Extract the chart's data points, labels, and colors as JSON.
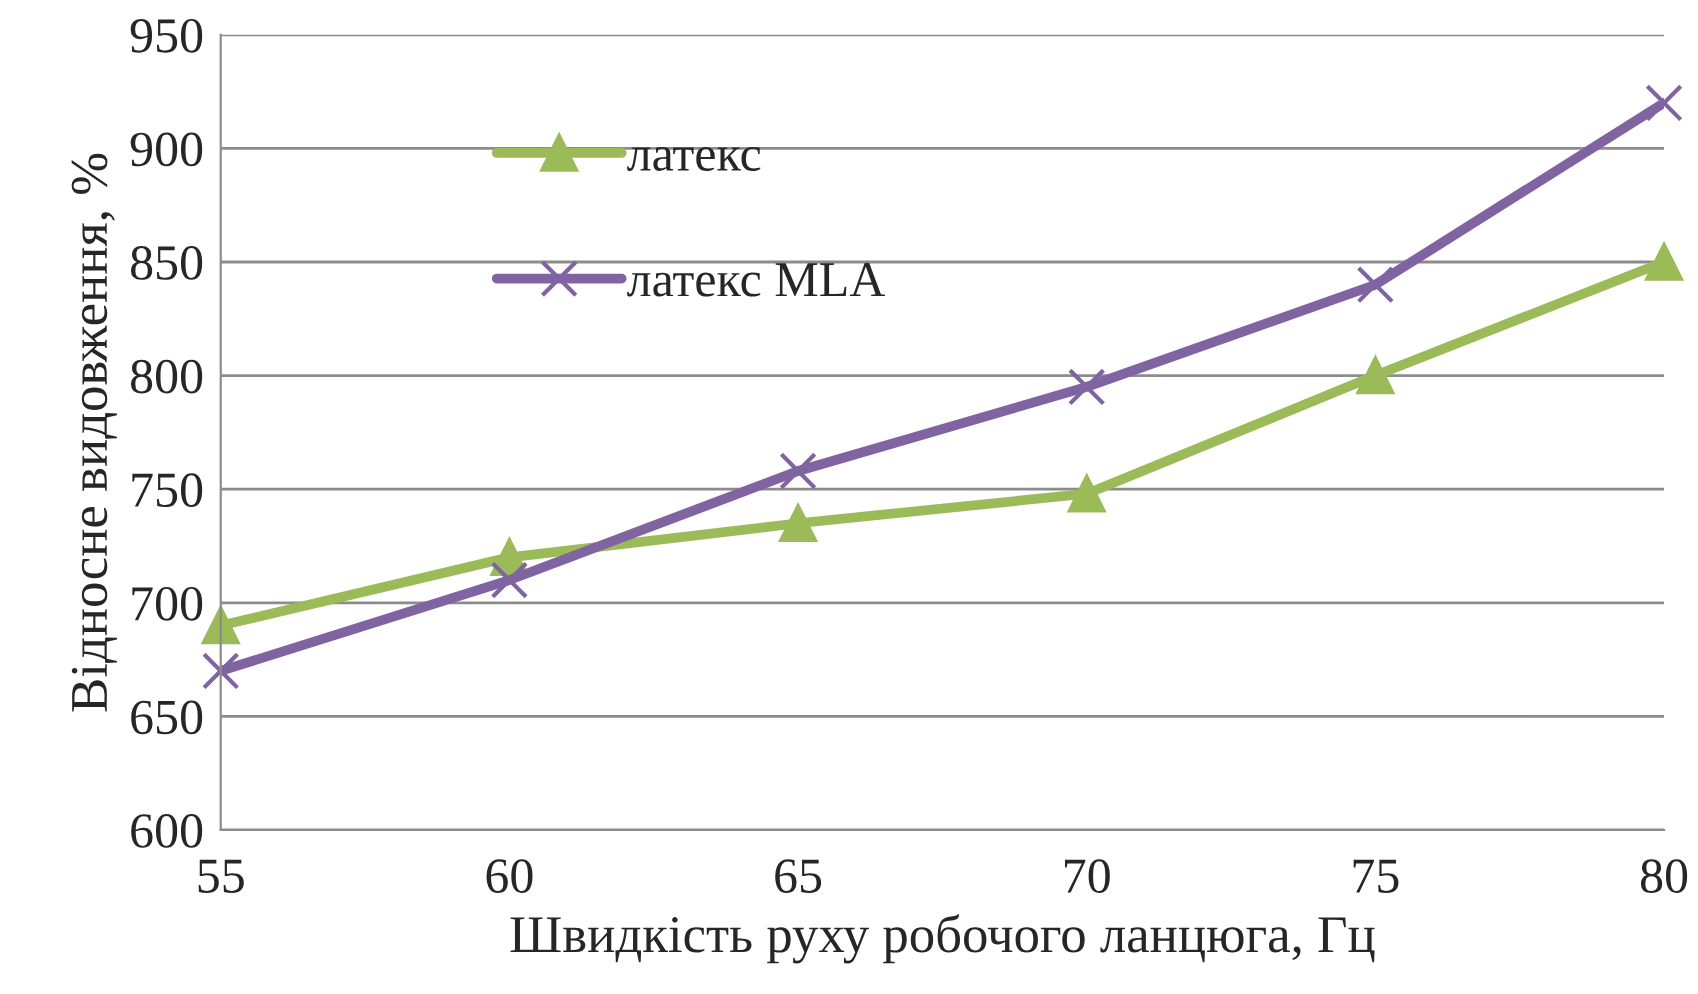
{
  "chart_data": {
    "type": "line",
    "xlabel": "Швидкість руху робочого ланцюга, Гц",
    "ylabel": "Відносне видовження, %",
    "x": [
      55,
      60,
      65,
      70,
      75,
      80
    ],
    "series": [
      {
        "name": "латекс",
        "color": "#9bbb59",
        "marker": "triangle",
        "values": [
          690,
          720,
          735,
          748,
          800,
          850
        ]
      },
      {
        "name": "латекс MLA",
        "color": "#8064a2",
        "marker": "cross",
        "values": [
          670,
          710,
          758,
          795,
          840,
          920
        ]
      }
    ],
    "xlim": [
      55,
      80
    ],
    "xticks": [
      55,
      60,
      65,
      70,
      75,
      80
    ],
    "ylim": [
      600,
      950
    ],
    "yticks": [
      600,
      650,
      700,
      750,
      800,
      850,
      900,
      950
    ],
    "grid": "y",
    "legend": "top left"
  }
}
